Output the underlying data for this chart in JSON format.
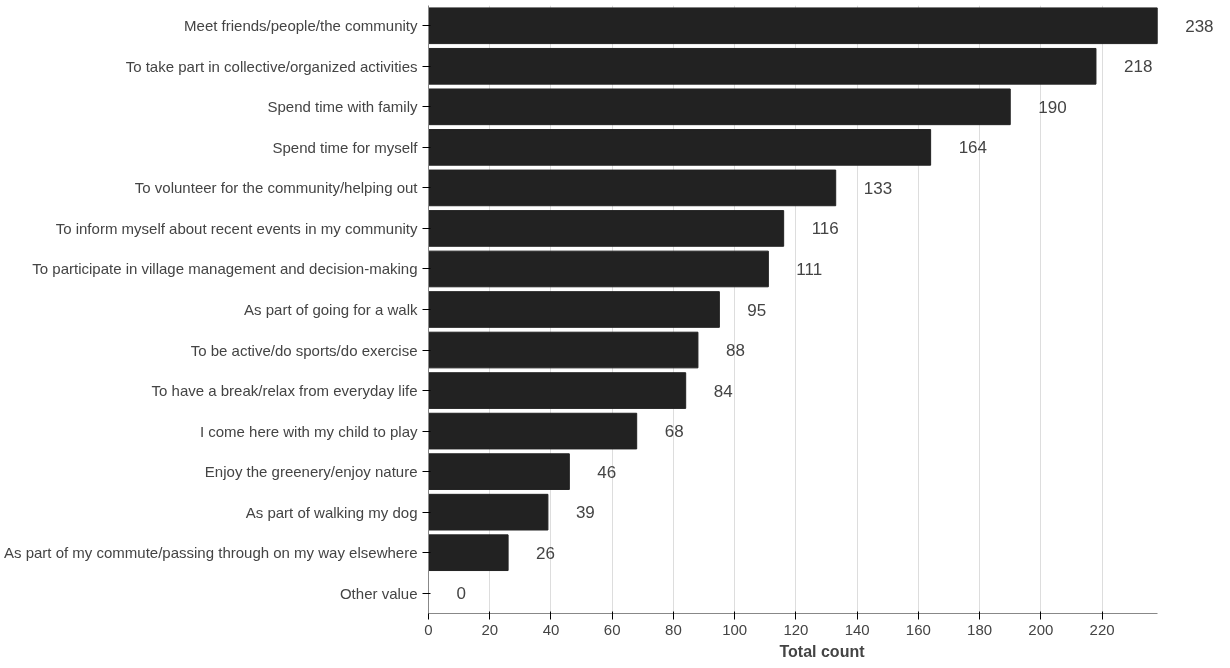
{
  "chart_data": {
    "type": "bar",
    "orientation": "horizontal",
    "xlabel": "Total count",
    "categories": [
      "Meet friends/people/the community",
      "To take part in collective/organized activities",
      "Spend time with family",
      "Spend time for myself",
      "To volunteer for the community/helping out",
      "To inform myself about recent events in my community",
      "To participate in village management and decision-making",
      "As part of going for a walk",
      "To be active/do sports/do exercise",
      "To have a break/relax from everyday life",
      "I come here with my child to play",
      "Enjoy the greenery/enjoy nature",
      "As part of walking my dog",
      "As part of my commute/passing through on my way elsewhere",
      "Other value"
    ],
    "values": [
      238,
      218,
      190,
      164,
      133,
      116,
      111,
      95,
      88,
      84,
      68,
      46,
      39,
      26,
      0
    ],
    "color": "#222222",
    "xlim": [
      0,
      238
    ],
    "xticks": [
      0,
      20,
      40,
      60,
      80,
      100,
      120,
      140,
      160,
      180,
      200,
      220
    ],
    "grid": "x",
    "data_labels": true
  }
}
